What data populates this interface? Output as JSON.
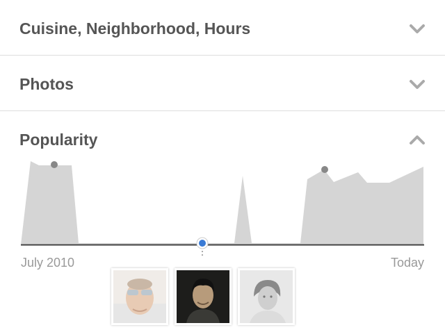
{
  "sections": [
    {
      "title": "Cuisine, Neighborhood, Hours",
      "state": "collapsed",
      "icon": "chevron-down-icon"
    },
    {
      "title": "Photos",
      "state": "collapsed",
      "icon": "chevron-down-icon"
    },
    {
      "title": "Popularity",
      "state": "expanded",
      "icon": "chevron-up-icon"
    }
  ],
  "popularity": {
    "start_label": "July 2010",
    "end_label": "Today",
    "selected_fraction": 0.45,
    "accent_color": "#3a7bd5",
    "fill_color": "#d5d5d5",
    "thumbnails": [
      {
        "name": "user-photo-sunglasses",
        "style": "faded"
      },
      {
        "name": "user-photo-dark",
        "style": "selected"
      },
      {
        "name": "user-photo-woman",
        "style": "faded"
      }
    ]
  }
}
